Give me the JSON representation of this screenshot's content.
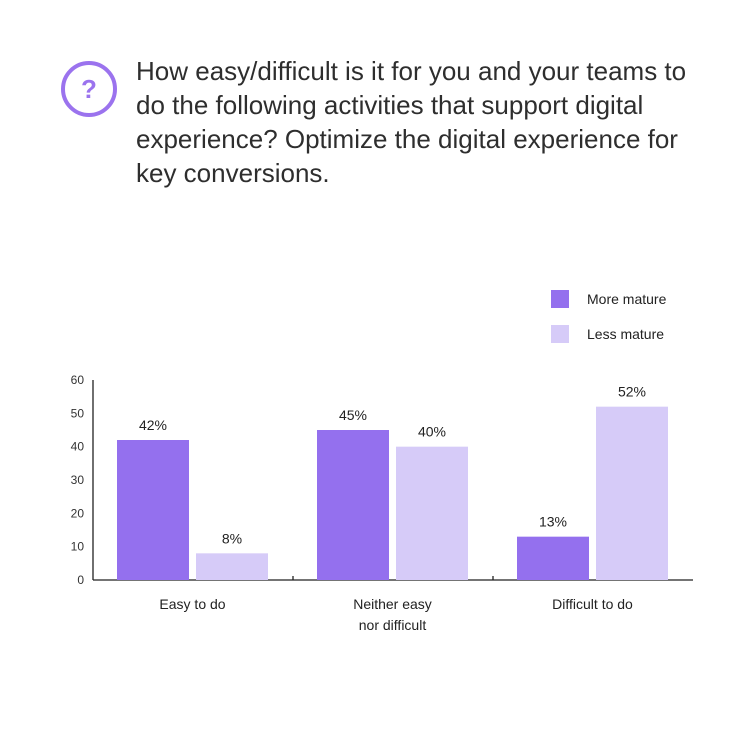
{
  "question": {
    "icon_name": "question-circle-icon",
    "icon_glyph": "?",
    "accent_color": "#9b73ee",
    "text": "How easy/difficult is it for you and your teams to do the following activities that support digital experience? Optimize the digital experience for key conversions."
  },
  "chart_data": {
    "type": "bar",
    "categories": [
      [
        "Easy to do"
      ],
      [
        "Neither easy",
        "nor difficult"
      ],
      [
        "Difficult to do"
      ]
    ],
    "series": [
      {
        "name": "More mature",
        "color": "#9470ee",
        "values": [
          42,
          45,
          13
        ],
        "labels": [
          "42%",
          "45%",
          "13%"
        ]
      },
      {
        "name": "Less mature",
        "color": "#d6cbf8",
        "values": [
          8,
          40,
          52
        ],
        "labels": [
          "8%",
          "40%",
          "52%"
        ]
      }
    ],
    "ylim": [
      0,
      60
    ],
    "yticks": [
      0,
      10,
      20,
      30,
      40,
      50,
      60
    ],
    "legend_position": "top-right",
    "grid": false
  }
}
